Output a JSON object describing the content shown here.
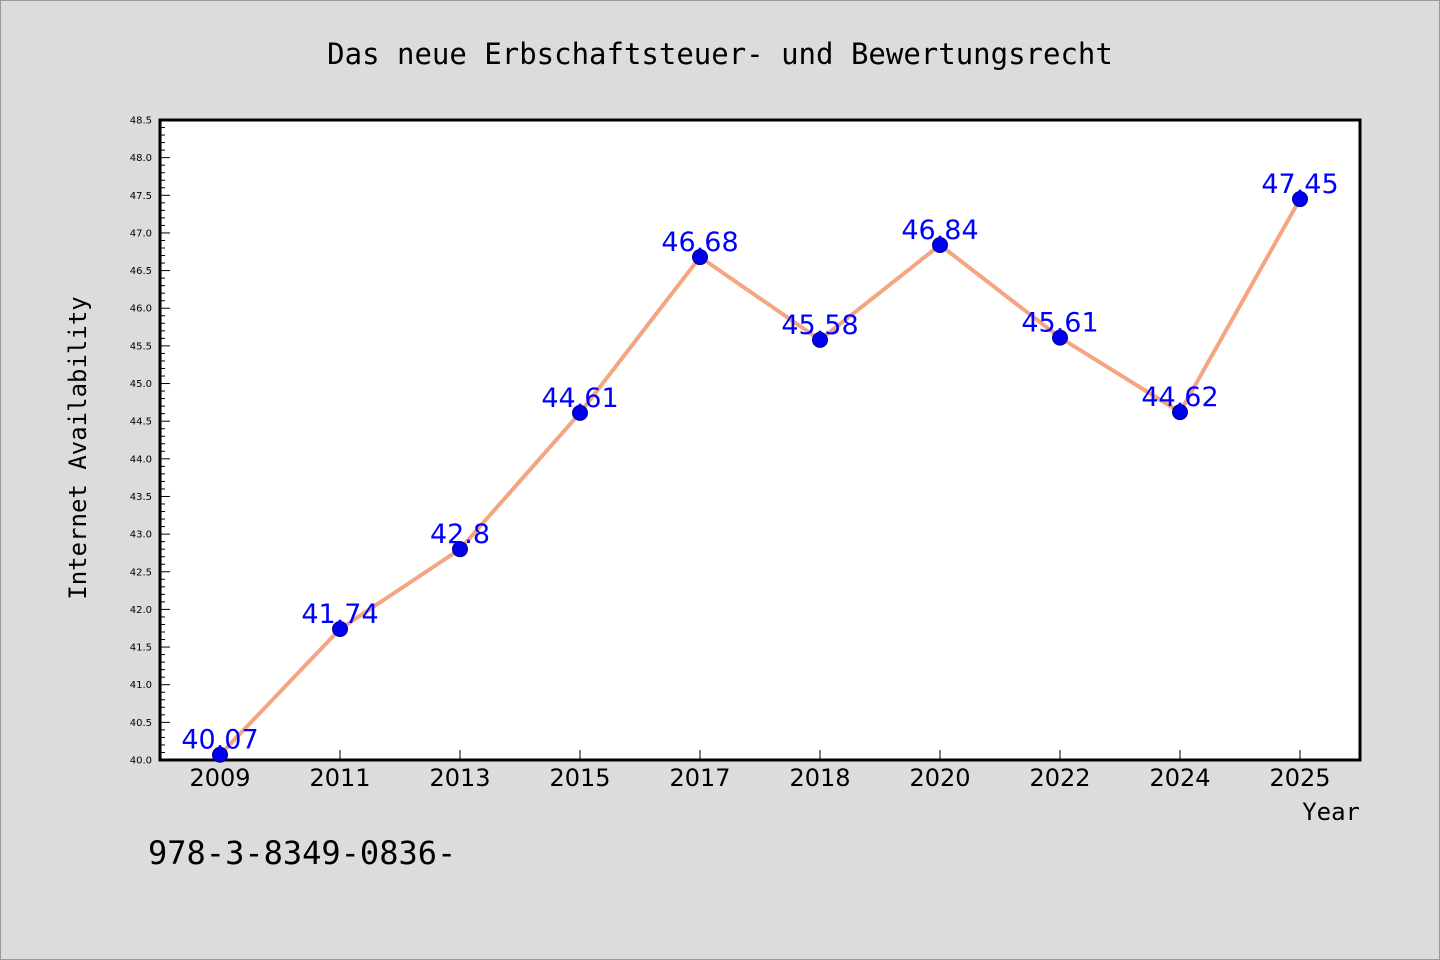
{
  "chart_data": {
    "type": "line",
    "title": "Das neue Erbschaftsteuer- und Bewertungsrecht",
    "xlabel": "Year",
    "ylabel": "Internet Availability",
    "categories": [
      "2009",
      "2011",
      "2013",
      "2015",
      "2017",
      "2018",
      "2020",
      "2022",
      "2024",
      "2025"
    ],
    "series": [
      {
        "values": [
          40.07,
          41.74,
          42.8,
          44.61,
          46.68,
          45.58,
          46.84,
          45.61,
          44.62,
          47.45
        ],
        "labels": [
          "40.07",
          "41.74",
          "42.8",
          "44.61",
          "46.68",
          "45.58",
          "46.84",
          "45.61",
          "44.62",
          "47.45"
        ]
      }
    ],
    "ylim": [
      40.0,
      48.5
    ],
    "yticks": [
      "40.0",
      "40.5",
      "41.0",
      "41.5",
      "42.0",
      "42.5",
      "43.0",
      "43.5",
      "44.0",
      "44.5",
      "45.0",
      "45.5",
      "46.0",
      "46.5",
      "47.0",
      "47.5",
      "48.0",
      "48.5"
    ],
    "grid": false,
    "colors": {
      "line": "#f4a582",
      "marker": "#0000ee",
      "data_label": "#0000ff",
      "background": "#dcdcdc",
      "plot_background": "#ffffff"
    },
    "footer_text": "978-3-8349-0836-"
  }
}
